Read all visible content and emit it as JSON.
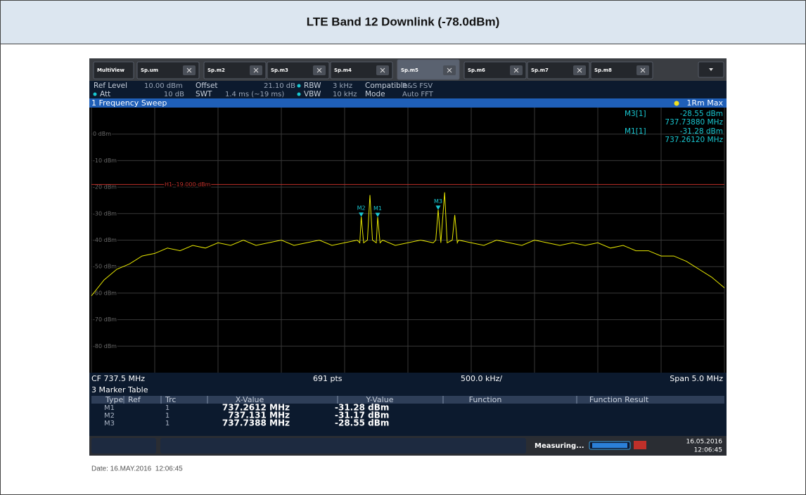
{
  "header": {
    "title": "LTE Band 12 Downlink (-78.0dBm)"
  },
  "tabs": [
    "MultiView",
    "Sp.um",
    "Sp.m2",
    "Sp.m3",
    "Sp.m4",
    "Sp.m5",
    "Sp.m6",
    "Sp.m7",
    "Sp.m8"
  ],
  "settings": {
    "ref_level_label": "Ref Level",
    "ref_level": "10.00 dBm",
    "att_label": "Att",
    "att": "10 dB",
    "offset_label": "Offset",
    "offset": "21.10 dB",
    "swt_label": "SWT",
    "swt": "1.4 ms (~19 ms)",
    "rbw_label": "RBW",
    "rbw": "3 kHz",
    "vbw_label": "VBW",
    "vbw": "10 kHz",
    "compatible_label": "Compatible",
    "compatible": "R&S FSV",
    "mode_label": "Mode",
    "mode": "Auto FFT"
  },
  "sweep": {
    "title": "1 Frequency Sweep",
    "trace_label": "1Rm Max"
  },
  "chart_data": {
    "type": "line",
    "color": "#e8e800",
    "xlim": [
      735,
      740
    ],
    "ylim": [
      -90,
      10
    ],
    "yticks": [
      {
        "value": 0,
        "label": "0 dBm"
      },
      {
        "value": -10,
        "label": "-10 dBm"
      },
      {
        "value": -20,
        "label": "-20 dBm"
      },
      {
        "value": -30,
        "label": "-30 dBm"
      },
      {
        "value": -40,
        "label": "-40 dBm"
      },
      {
        "value": -50,
        "label": "-50 dBm"
      },
      {
        "value": -60,
        "label": "-60 dBm"
      },
      {
        "value": -70,
        "label": "-70 dBm"
      },
      {
        "value": -80,
        "label": "-80 dBm"
      }
    ],
    "x": [
      735.0,
      735.1,
      735.2,
      735.3,
      735.4,
      735.5,
      735.6,
      735.7,
      735.8,
      735.9,
      736.0,
      736.1,
      736.2,
      736.3,
      736.4,
      736.5,
      736.6,
      736.7,
      736.8,
      736.9,
      737.0,
      737.1,
      737.12,
      737.131,
      737.15,
      737.18,
      737.2,
      737.22,
      737.25,
      737.2612,
      737.28,
      737.3,
      737.4,
      737.5,
      737.6,
      737.7,
      737.72,
      737.7388,
      737.76,
      737.79,
      737.81,
      737.85,
      737.87,
      737.89,
      737.9,
      738.0,
      738.1,
      738.2,
      738.3,
      738.4,
      738.5,
      738.6,
      738.7,
      738.8,
      738.9,
      739.0,
      739.1,
      739.2,
      739.3,
      739.4,
      739.5,
      739.6,
      739.7,
      739.8,
      739.9,
      740.0
    ],
    "values": [
      -61,
      -55,
      -51,
      -49,
      -46,
      -45,
      -43,
      -44,
      -42,
      -43,
      -41,
      -42,
      -40,
      -42,
      -41,
      -40,
      -42,
      -41,
      -40,
      -42,
      -41,
      -40,
      -41,
      -31.17,
      -41,
      -40,
      -23,
      -40,
      -41,
      -31.28,
      -41,
      -40,
      -42,
      -41,
      -40,
      -41,
      -40,
      -28.55,
      -41,
      -22,
      -41,
      -40,
      -30.5,
      -41,
      -40,
      -41,
      -42,
      -40,
      -41,
      -42,
      -40,
      -41,
      -42,
      -41,
      -42,
      -41,
      -43,
      -42,
      -44,
      -44,
      -46,
      -46,
      -48,
      -51,
      -54,
      -58
    ],
    "limit_line": {
      "value": -19,
      "label": "H1 -19.000 dBm",
      "color": "#c0302a"
    },
    "markers": [
      {
        "name": "M2",
        "x": 737.131,
        "y": -31.17
      },
      {
        "name": "M1",
        "x": 737.2612,
        "y": -31.28
      },
      {
        "name": "M3",
        "x": 737.7388,
        "y": -28.55
      }
    ],
    "marker_color": "#19c8d2",
    "readouts": [
      {
        "label": "M3[1]",
        "y_label": "-28.55 dBm",
        "x_label": "737.73880 MHz"
      },
      {
        "label": "M1[1]",
        "y_label": "-31.28 dBm",
        "x_label": "737.26120 MHz"
      }
    ],
    "footer": {
      "cf": "CF 737.5 MHz",
      "points": "691 pts",
      "division": "500.0 kHz/",
      "span": "Span 5.0 MHz"
    }
  },
  "marker_table": {
    "title": "3 Marker Table",
    "columns": [
      "Type",
      "Ref",
      "Trc",
      "X-Value",
      "Y-Value",
      "Function",
      "Function Result"
    ],
    "rows": [
      [
        "M1",
        "1",
        "737.2612 MHz",
        "-31.28 dBm"
      ],
      [
        "M2",
        "1",
        "737.131 MHz",
        "-31.17 dBm"
      ],
      [
        "M3",
        "1",
        "737.7388 MHz",
        "-28.55 dBm"
      ]
    ]
  },
  "status": {
    "measuring": "Measuring...",
    "date": "16.05.2016",
    "time": "12:06:45"
  },
  "footer": {
    "date": "Date: 16.MAY.2016  12:06:45"
  }
}
